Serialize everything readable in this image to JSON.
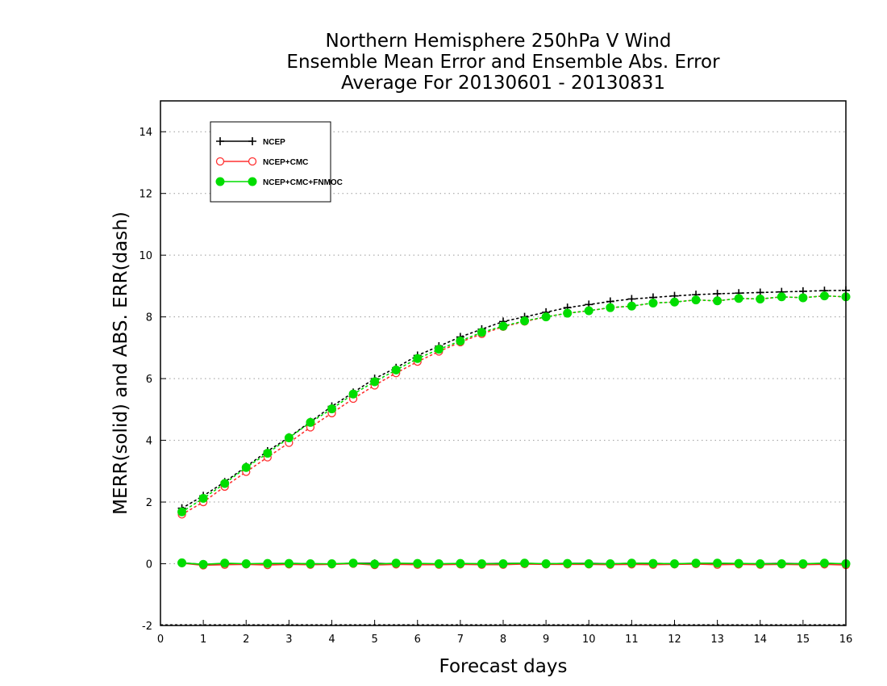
{
  "chart_data": {
    "type": "line",
    "title": [
      "Northern Hemisphere 250hPa V Wind",
      "Ensemble Mean Error and Ensemble Abs. Error",
      "Average For 20130601 - 20130831"
    ],
    "xlabel": "Forecast days",
    "ylabel": "MERR(solid) and ABS. ERR(dash)",
    "xlim": [
      0,
      16
    ],
    "ylim": [
      -2,
      15
    ],
    "xticks": [
      0,
      1,
      2,
      3,
      4,
      5,
      6,
      7,
      8,
      9,
      10,
      11,
      12,
      13,
      14,
      15,
      16
    ],
    "yticks": [
      -2,
      0,
      2,
      4,
      6,
      8,
      10,
      12,
      14
    ],
    "grid": "horizontal dotted",
    "legend_position": "top-left",
    "x": [
      0.5,
      1,
      1.5,
      2,
      2.5,
      3,
      3.5,
      4,
      4.5,
      5,
      5.5,
      6,
      6.5,
      7,
      7.5,
      8,
      8.5,
      9,
      9.5,
      10,
      10.5,
      11,
      11.5,
      12,
      12.5,
      13,
      13.5,
      14,
      14.5,
      15,
      15.5,
      16
    ],
    "series": [
      {
        "name": "NCEP",
        "color": "#000000",
        "marker": "plus",
        "abs_err": [
          1.8,
          2.2,
          2.65,
          3.15,
          3.65,
          4.1,
          4.6,
          5.1,
          5.55,
          6.0,
          6.35,
          6.75,
          7.05,
          7.35,
          7.6,
          7.85,
          8.0,
          8.15,
          8.3,
          8.4,
          8.5,
          8.58,
          8.63,
          8.68,
          8.72,
          8.75,
          8.77,
          8.79,
          8.81,
          8.83,
          8.85,
          8.86
        ],
        "mean_err": [
          0.03,
          -0.02,
          0.0,
          -0.01,
          0.0,
          0.01,
          0.0,
          -0.01,
          0.02,
          0.01,
          0.0,
          0.0,
          -0.01,
          0.0,
          0.0,
          0.01,
          0.01,
          0.0,
          0.01,
          0.01,
          0.0,
          0.01,
          0.01,
          0.0,
          0.01,
          0.01,
          0.0,
          0.0,
          0.01,
          0.0,
          0.01,
          0.0
        ]
      },
      {
        "name": "NCEP+CMC",
        "color": "#ff3030",
        "marker": "open-circle",
        "abs_err": [
          1.6,
          2.0,
          2.5,
          2.98,
          3.45,
          3.92,
          4.42,
          4.88,
          5.35,
          5.78,
          6.18,
          6.55,
          6.88,
          7.18,
          7.45,
          7.68,
          7.85,
          8.0,
          8.12,
          8.2,
          8.3,
          8.35,
          8.45,
          8.48,
          8.55,
          8.52,
          8.6,
          8.58,
          8.65,
          8.62,
          8.68,
          8.65
        ],
        "mean_err": [
          0.02,
          -0.05,
          -0.03,
          -0.02,
          -0.04,
          -0.02,
          -0.03,
          -0.02,
          0.0,
          -0.04,
          -0.02,
          -0.03,
          -0.03,
          -0.02,
          -0.03,
          -0.03,
          -0.01,
          -0.02,
          -0.02,
          -0.02,
          -0.03,
          -0.02,
          -0.03,
          -0.02,
          -0.01,
          -0.03,
          -0.02,
          -0.03,
          -0.02,
          -0.03,
          -0.02,
          -0.04
        ]
      },
      {
        "name": "NCEP+CMC+FNMOC",
        "color": "#00dd00",
        "marker": "filled-circle",
        "abs_err": [
          1.68,
          2.12,
          2.6,
          3.12,
          3.58,
          4.08,
          4.58,
          5.02,
          5.5,
          5.9,
          6.28,
          6.65,
          6.95,
          7.22,
          7.5,
          7.7,
          7.87,
          8.0,
          8.12,
          8.2,
          8.3,
          8.35,
          8.45,
          8.48,
          8.55,
          8.52,
          8.6,
          8.58,
          8.65,
          8.62,
          8.68,
          8.65
        ],
        "mean_err": [
          0.03,
          -0.02,
          0.02,
          0.0,
          0.01,
          0.01,
          0.0,
          0.0,
          0.02,
          -0.01,
          0.02,
          0.01,
          0.0,
          0.01,
          0.0,
          0.0,
          0.02,
          0.0,
          0.01,
          0.0,
          0.0,
          0.02,
          0.01,
          0.0,
          0.02,
          0.02,
          0.01,
          0.0,
          0.0,
          0.0,
          0.02,
          0.0
        ]
      }
    ]
  }
}
